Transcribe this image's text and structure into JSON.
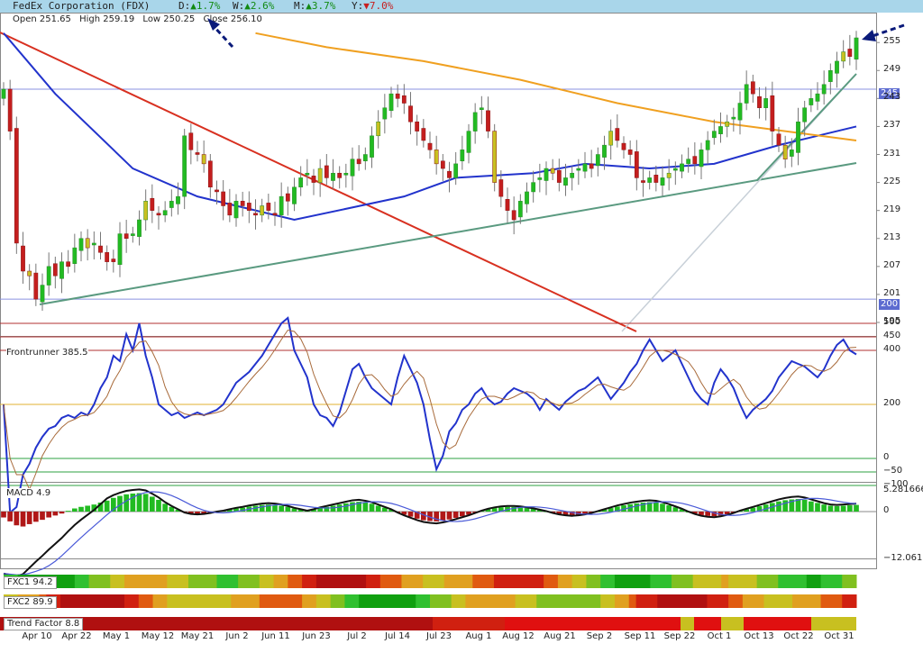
{
  "header": {
    "company": "FedEx Corporation (FDX)",
    "day_label": "D:",
    "day_dir": "▲",
    "day_val": "1.7%",
    "week_label": "W:",
    "week_dir": "▲",
    "week_val": "2.6%",
    "month_label": "M:",
    "month_dir": "▲",
    "month_val": "3.7%",
    "year_label": "Y:",
    "year_dir": "▼",
    "year_val": "7.0%"
  },
  "ohlc": {
    "open": "Open 251.65",
    "high": "High 259.19",
    "low": "Low 250.25",
    "close": "Close 256.10"
  },
  "panels": {
    "frontrunner_label": "Frontrunner 385.5",
    "macd_label": "MACD 4.9",
    "fxc1_label": "FXC1 94.2",
    "fxc2_label": "FXC2 89.9",
    "trend_label": "Trend Factor 8.8"
  },
  "price_tags": {
    "upper": "245",
    "lower": "200"
  },
  "colors": {
    "up_candle": "#22bb22",
    "down_candle": "#c41e1e",
    "neutral_candle": "#c8c020",
    "ma_blue": "#2233cc",
    "ma_orange": "#f0a020",
    "trend_red": "#d83020",
    "trend_green": "#5a9a80"
  },
  "chart_data": [
    {
      "type": "candlestick",
      "title": "FedEx Corporation (FDX)",
      "y_ticks": [
        195,
        201,
        207,
        213,
        219,
        225,
        231,
        237,
        243,
        249,
        255
      ],
      "ylim": [
        193,
        260
      ],
      "x_ticks": [
        "Apr 10",
        "Apr 22",
        "May 1",
        "May 12",
        "May 21",
        "Jun 2",
        "Jun 11",
        "Jun 23",
        "Jul 2",
        "Jul 14",
        "Jul 23",
        "Aug 1",
        "Aug 12",
        "Aug 21",
        "Sep 2",
        "Sep 11",
        "Sep 22",
        "Oct 1",
        "Oct 13",
        "Oct 22",
        "Oct 31"
      ],
      "close": [
        245,
        236,
        212,
        206,
        205,
        200,
        203,
        207,
        205,
        208,
        207,
        211,
        213,
        211,
        212,
        210,
        208,
        208,
        214,
        213,
        214,
        217,
        221,
        219,
        218,
        219,
        221,
        222,
        235,
        232,
        231,
        229,
        224,
        223,
        220,
        218,
        221,
        220,
        219,
        218,
        220,
        219,
        218,
        222,
        221,
        224,
        226,
        227,
        225,
        228,
        226,
        227,
        226,
        227,
        230,
        229,
        231,
        235,
        238,
        241,
        244,
        243,
        242,
        238,
        236,
        234,
        232,
        229,
        228,
        226,
        229,
        232,
        236,
        240,
        241,
        236,
        225,
        222,
        219,
        217,
        221,
        223,
        225,
        226,
        228,
        227,
        225,
        226,
        227,
        228,
        229,
        228,
        231,
        233,
        236,
        234,
        232,
        231,
        226,
        225,
        226,
        225,
        226,
        227,
        228,
        229,
        230,
        229,
        232,
        234,
        236,
        237,
        238,
        239,
        242,
        246,
        244,
        241,
        243,
        236,
        233,
        230,
        232,
        238,
        241,
        243,
        244,
        246,
        249,
        251,
        253,
        252,
        256
      ],
      "horizontal_lines": [
        245,
        200
      ],
      "series": [
        {
          "name": "",
          "kind": "ma_blue",
          "x": [
            0,
            8,
            20,
            30,
            45,
            62,
            70,
            82,
            90,
            100,
            110,
            120,
            132
          ],
          "y": [
            257,
            244,
            228,
            222,
            217,
            222,
            226,
            227,
            229,
            228,
            229,
            233,
            237
          ]
        },
        {
          "name": "",
          "kind": "ma_orange",
          "x": [
            39,
            50,
            65,
            80,
            95,
            110,
            132
          ],
          "y": [
            257,
            254,
            251,
            247,
            242,
            238,
            234
          ]
        }
      ]
    },
    {
      "type": "line",
      "title": "Frontrunner",
      "y_ticks": [
        -100,
        -50,
        0,
        200,
        400,
        450,
        500
      ],
      "series": [
        {
          "name": "Frontrunner",
          "values": [
            200,
            -200,
            -180,
            -60,
            -20,
            40,
            80,
            110,
            120,
            150,
            160,
            150,
            170,
            160,
            200,
            260,
            300,
            380,
            360,
            460,
            400,
            500,
            380,
            300,
            200,
            180,
            160,
            170,
            150,
            160,
            170,
            160,
            170,
            180,
            200,
            240,
            280,
            300,
            320,
            350,
            380,
            420,
            460,
            500,
            520,
            400,
            350,
            300,
            200,
            160,
            150,
            120,
            170,
            250,
            330,
            350,
            300,
            260,
            240,
            220,
            200,
            300,
            380,
            330,
            280,
            200,
            70,
            -40,
            10,
            100,
            130,
            180,
            200,
            240,
            260,
            220,
            200,
            210,
            240,
            260,
            250,
            240,
            220,
            180,
            220,
            200,
            180,
            210,
            230,
            250,
            260,
            280,
            300,
            260,
            220,
            250,
            280,
            320,
            350,
            400,
            440,
            400,
            360,
            380,
            400,
            350,
            300,
            250,
            220,
            200,
            280,
            330,
            300,
            260,
            200,
            150,
            180,
            200,
            220,
            250,
            300,
            330,
            360,
            350,
            340,
            320,
            300,
            330,
            380,
            420,
            440,
            400,
            385
          ]
        }
      ]
    },
    {
      "type": "bar",
      "title": "MACD",
      "y_ticks": [
        5.281666,
        0,
        -12.06112
      ],
      "series": [
        {
          "name": "MACD",
          "values": [
            -1.5,
            -2.5,
            -3.5,
            -3.8,
            -3.2,
            -2.6,
            -2.1,
            -1.5,
            -1.0,
            -0.5,
            0.2,
            0.8,
            1.2,
            1.5,
            1.8,
            2.3,
            2.8,
            3.5,
            4.0,
            4.4,
            4.6,
            4.7,
            4.5,
            3.8,
            3.0,
            2.0,
            1.2,
            0.5,
            -0.2,
            -0.5,
            -0.6,
            -0.5,
            -0.3,
            0.0,
            0.2,
            0.5,
            0.8,
            1.0,
            1.3,
            1.5,
            1.7,
            1.8,
            1.7,
            1.5,
            1.2,
            0.8,
            0.5,
            0.2,
            0.5,
            0.9,
            1.2,
            1.5,
            1.8,
            2.1,
            2.4,
            2.5,
            2.3,
            2.0,
            1.5,
            1.0,
            0.5,
            -0.2,
            -0.8,
            -1.3,
            -1.8,
            -2.2,
            -2.4,
            -2.5,
            -2.3,
            -2.0,
            -1.6,
            -1.2,
            -0.8,
            -0.3,
            0.2,
            0.6,
            0.9,
            1.1,
            1.2,
            1.2,
            1.1,
            0.9,
            0.7,
            0.4,
            0.1,
            -0.3,
            -0.6,
            -0.8,
            -0.9,
            -0.8,
            -0.6,
            -0.3,
            0.1,
            0.5,
            0.9,
            1.3,
            1.6,
            1.9,
            2.1,
            2.3,
            2.4,
            2.3,
            2.0,
            1.6,
            1.1,
            0.6,
            0.0,
            -0.5,
            -0.9,
            -1.1,
            -1.2,
            -1.0,
            -0.7,
            -0.3,
            0.2,
            0.6,
            1.0,
            1.4,
            1.8,
            2.2,
            2.6,
            2.9,
            3.1,
            3.2,
            3.0,
            2.6,
            2.2,
            1.8,
            1.5,
            1.4,
            1.5,
            1.6,
            1.7
          ]
        }
      ]
    }
  ]
}
